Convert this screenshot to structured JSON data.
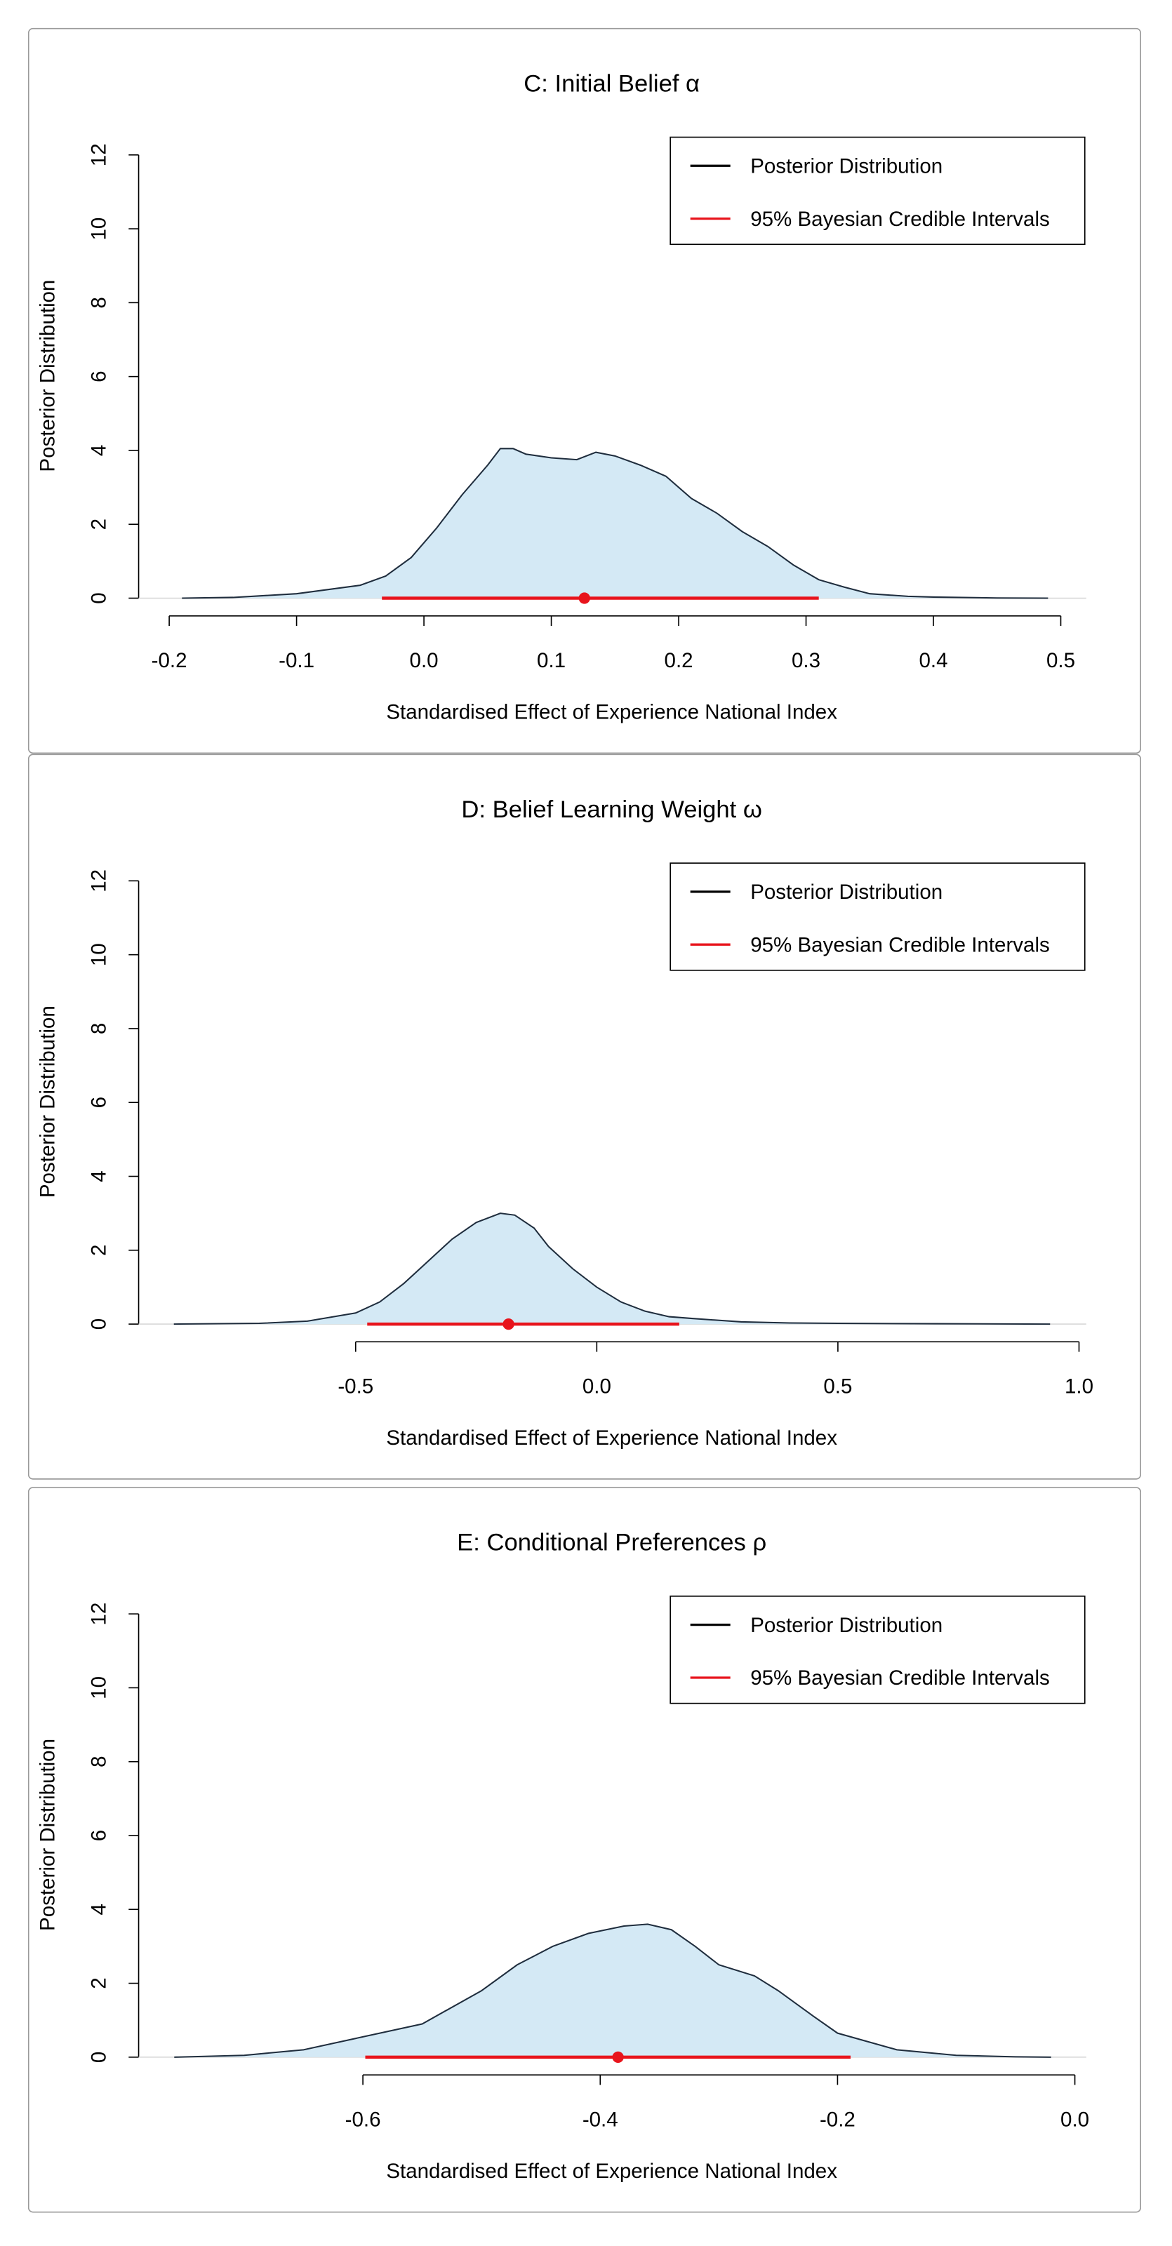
{
  "chart_data": [
    {
      "type": "density",
      "title": "C: Initial Belief  α",
      "x_label": "Standardised Effect of Experience National Index",
      "y_label": "Posterior Distribution",
      "xlim": [
        -0.224,
        0.52
      ],
      "xticks": [
        -0.2,
        -0.1,
        {
          "value": 0,
          "label": "0.0"
        },
        0.1,
        0.2,
        0.3,
        0.4,
        0.5
      ],
      "ylim": [
        -0.48,
        12.48
      ],
      "yticks": [
        0,
        2,
        4,
        6,
        8,
        10,
        12
      ],
      "density": {
        "name": "Posterior Distribution",
        "line_color": "#1f2d3d",
        "fill_color": "#d4e9f5",
        "x": [
          -0.19,
          -0.15,
          -0.1,
          -0.05,
          -0.03,
          -0.01,
          0.01,
          0.03,
          0.05,
          0.06,
          0.07,
          0.08,
          0.1,
          0.12,
          0.135,
          0.15,
          0.17,
          0.19,
          0.21,
          0.23,
          0.25,
          0.27,
          0.29,
          0.31,
          0.33,
          0.35,
          0.38,
          0.4,
          0.45,
          0.49
        ],
        "values": [
          0,
          0.02,
          0.12,
          0.35,
          0.6,
          1.1,
          1.9,
          2.8,
          3.6,
          4.05,
          4.05,
          3.9,
          3.8,
          3.75,
          3.95,
          3.85,
          3.6,
          3.3,
          2.7,
          2.3,
          1.8,
          1.4,
          0.9,
          0.5,
          0.3,
          0.12,
          0.05,
          0.03,
          0.005,
          0
        ]
      },
      "interval": {
        "name": "95% Bayesian Credible Intervals",
        "color": "#e8141c",
        "low": -0.033,
        "high": 0.31,
        "point": 0.126
      }
    },
    {
      "type": "density",
      "title": "D: Belief Learning Weight  ω",
      "x_label": "Standardised Effect of Experience National Index",
      "y_label": "Posterior Distribution",
      "xlim": [
        -0.95,
        1.015
      ],
      "xticks": [
        -0.5,
        {
          "value": 0,
          "label": "0.0"
        },
        0.5,
        {
          "value": 1,
          "label": "1.0"
        }
      ],
      "ylim": [
        -0.48,
        12.48
      ],
      "yticks": [
        0,
        2,
        4,
        6,
        8,
        10,
        12
      ],
      "density": {
        "name": "Posterior Distribution",
        "line_color": "#1f2d3d",
        "fill_color": "#d4e9f5",
        "x": [
          -0.877,
          -0.7,
          -0.6,
          -0.5,
          -0.45,
          -0.4,
          -0.35,
          -0.3,
          -0.25,
          -0.2,
          -0.17,
          -0.13,
          -0.1,
          -0.05,
          0,
          0.05,
          0.1,
          0.15,
          0.2,
          0.3,
          0.4,
          0.5,
          0.7,
          0.94
        ],
        "values": [
          0,
          0.02,
          0.08,
          0.3,
          0.6,
          1.1,
          1.7,
          2.3,
          2.75,
          3.0,
          2.95,
          2.6,
          2.1,
          1.5,
          1.0,
          0.6,
          0.35,
          0.2,
          0.15,
          0.06,
          0.03,
          0.02,
          0.01,
          0
        ]
      },
      "interval": {
        "name": "95% Bayesian Credible Intervals",
        "color": "#e8141c",
        "low": -0.476,
        "high": 0.171,
        "point": -0.183
      }
    },
    {
      "type": "density",
      "title": "E: Conditional Preferences  ρ",
      "x_label": "Standardised Effect of Experience National Index",
      "y_label": "Posterior Distribution",
      "xlim": [
        -0.789,
        0.0096
      ],
      "xticks": [
        -0.6,
        -0.4,
        -0.2,
        {
          "value": 0,
          "label": "0.0"
        }
      ],
      "ylim": [
        -0.48,
        12.48
      ],
      "yticks": [
        0,
        2,
        4,
        6,
        8,
        10,
        12
      ],
      "density": {
        "name": "Posterior Distribution",
        "line_color": "#1f2d3d",
        "fill_color": "#d4e9f5",
        "x": [
          -0.759,
          -0.7,
          -0.65,
          -0.6,
          -0.55,
          -0.5,
          -0.47,
          -0.44,
          -0.41,
          -0.38,
          -0.36,
          -0.34,
          -0.32,
          -0.3,
          -0.27,
          -0.25,
          -0.22,
          -0.2,
          -0.15,
          -0.1,
          -0.05,
          -0.02
        ],
        "values": [
          0,
          0.05,
          0.2,
          0.55,
          0.9,
          1.8,
          2.5,
          3.0,
          3.35,
          3.55,
          3.6,
          3.45,
          3.0,
          2.5,
          2.2,
          1.8,
          1.1,
          0.65,
          0.2,
          0.05,
          0.01,
          0
        ]
      },
      "interval": {
        "name": "95% Bayesian Credible Intervals",
        "color": "#e8141c",
        "low": -0.598,
        "high": -0.189,
        "point": -0.385
      }
    }
  ]
}
